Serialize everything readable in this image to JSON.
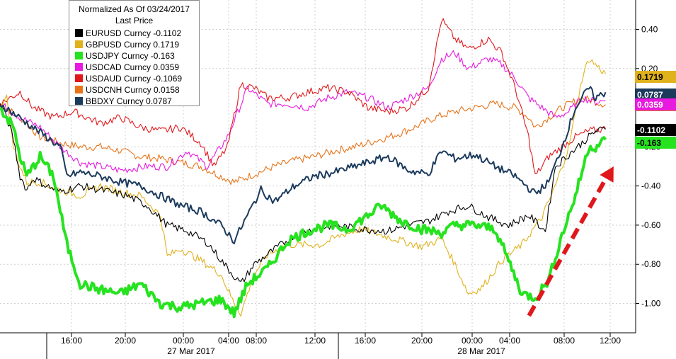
{
  "chart_data": {
    "type": "line",
    "legend": {
      "title_line1": "Normalized As Of 03/24/2017",
      "title_line2": "Last Price",
      "placement": "top-left"
    },
    "x_tick_labels": [
      "16:00",
      "20:00",
      "00:00",
      "04:00",
      "08:00",
      "12:00",
      "16:00",
      "20:00",
      "00:00",
      "04:00",
      "08:00",
      "12:00"
    ],
    "x_date_labels": [
      "27 Mar 2017",
      "28 Mar 2017"
    ],
    "y_tick_labels": [
      "0.40",
      "0.20",
      "-0.20",
      "-0.40",
      "-0.60",
      "-0.80",
      "-1.00"
    ],
    "ylim": [
      -1.15,
      0.55
    ],
    "grid": true,
    "series": [
      {
        "name": "EURUSD Curncy",
        "value_label": "-0.1102",
        "tag_label": "-0.1102",
        "color": "#000000",
        "tag_text_color": "#ffffff",
        "values": [
          [
            0,
            0.02
          ],
          [
            2,
            -0.05
          ],
          [
            4,
            -0.16
          ],
          [
            6,
            -0.35
          ],
          [
            8,
            -0.42
          ],
          [
            10,
            -0.36
          ],
          [
            14,
            -0.4
          ],
          [
            18,
            -0.43
          ],
          [
            24,
            -0.4
          ],
          [
            30,
            -0.42
          ],
          [
            38,
            -0.45
          ],
          [
            44,
            -0.5
          ],
          [
            50,
            -0.6
          ],
          [
            56,
            -0.63
          ],
          [
            62,
            -0.69
          ],
          [
            68,
            -0.82
          ],
          [
            72,
            -0.9
          ],
          [
            76,
            -0.8
          ],
          [
            80,
            -0.75
          ],
          [
            84,
            -0.7
          ],
          [
            88,
            -0.65
          ],
          [
            94,
            -0.62
          ],
          [
            100,
            -0.6
          ],
          [
            108,
            -0.62
          ],
          [
            116,
            -0.63
          ],
          [
            122,
            -0.6
          ],
          [
            128,
            -0.58
          ],
          [
            134,
            -0.53
          ],
          [
            140,
            -0.5
          ],
          [
            146,
            -0.56
          ],
          [
            152,
            -0.6
          ],
          [
            158,
            -0.55
          ],
          [
            163,
            -0.63
          ],
          [
            166,
            -0.3
          ],
          [
            170,
            -0.24
          ],
          [
            174,
            -0.18
          ],
          [
            178,
            -0.12
          ],
          [
            181,
            -0.1102
          ]
        ]
      },
      {
        "name": "GBPUSD Curncy",
        "value_label": "0.1719",
        "tag_label": "0.1719",
        "color": "#e0b21c",
        "tag_text_color": "#000000",
        "values": [
          [
            0,
            0.02
          ],
          [
            2,
            0.05
          ],
          [
            4,
            -0.2
          ],
          [
            6,
            -0.3
          ],
          [
            8,
            -0.38
          ],
          [
            12,
            -0.38
          ],
          [
            18,
            -0.42
          ],
          [
            24,
            -0.45
          ],
          [
            30,
            -0.4
          ],
          [
            36,
            -0.43
          ],
          [
            42,
            -0.45
          ],
          [
            48,
            -0.55
          ],
          [
            50,
            -0.76
          ],
          [
            54,
            -0.72
          ],
          [
            60,
            -0.78
          ],
          [
            66,
            -0.85
          ],
          [
            70,
            -1.0
          ],
          [
            72,
            -1.05
          ],
          [
            76,
            -0.85
          ],
          [
            80,
            -0.75
          ],
          [
            86,
            -0.7
          ],
          [
            90,
            -0.7
          ],
          [
            96,
            -0.7
          ],
          [
            102,
            -0.65
          ],
          [
            108,
            -0.62
          ],
          [
            114,
            -0.65
          ],
          [
            120,
            -0.68
          ],
          [
            126,
            -0.71
          ],
          [
            132,
            -0.67
          ],
          [
            136,
            -0.8
          ],
          [
            140,
            -0.95
          ],
          [
            144,
            -0.92
          ],
          [
            150,
            -0.78
          ],
          [
            156,
            -0.7
          ],
          [
            162,
            -0.56
          ],
          [
            166,
            -0.4
          ],
          [
            170,
            -0.2
          ],
          [
            174,
            0.15
          ],
          [
            176,
            0.25
          ],
          [
            178,
            0.22
          ],
          [
            181,
            0.1719
          ]
        ]
      },
      {
        "name": "USDJPY Curncy",
        "value_label": "-0.163",
        "tag_label": "-0.163",
        "color": "#26e31f",
        "tag_text_color": "#000000",
        "values": [
          [
            0,
            0.0
          ],
          [
            4,
            -0.1
          ],
          [
            6,
            -0.25
          ],
          [
            8,
            -0.35
          ],
          [
            12,
            -0.25
          ],
          [
            16,
            -0.35
          ],
          [
            20,
            -0.7
          ],
          [
            24,
            -0.9
          ],
          [
            30,
            -0.93
          ],
          [
            36,
            -0.95
          ],
          [
            42,
            -0.9
          ],
          [
            48,
            -1.0
          ],
          [
            54,
            -1.02
          ],
          [
            60,
            -1.0
          ],
          [
            66,
            -0.98
          ],
          [
            70,
            -1.05
          ],
          [
            74,
            -0.9
          ],
          [
            80,
            -0.82
          ],
          [
            86,
            -0.68
          ],
          [
            92,
            -0.63
          ],
          [
            98,
            -0.6
          ],
          [
            104,
            -0.62
          ],
          [
            110,
            -0.55
          ],
          [
            114,
            -0.5
          ],
          [
            120,
            -0.58
          ],
          [
            126,
            -0.62
          ],
          [
            132,
            -0.64
          ],
          [
            136,
            -0.6
          ],
          [
            142,
            -0.6
          ],
          [
            148,
            -0.62
          ],
          [
            152,
            -0.78
          ],
          [
            156,
            -0.95
          ],
          [
            160,
            -0.97
          ],
          [
            164,
            -0.88
          ],
          [
            168,
            -0.65
          ],
          [
            172,
            -0.45
          ],
          [
            176,
            -0.2
          ],
          [
            178,
            -0.2
          ],
          [
            181,
            -0.163
          ]
        ]
      },
      {
        "name": "USDCAD Curncy",
        "value_label": "0.0359",
        "tag_label": "0.0359",
        "color": "#e81adf",
        "tag_text_color": "#ffffff",
        "values": [
          [
            0,
            0.02
          ],
          [
            6,
            -0.05
          ],
          [
            12,
            -0.1
          ],
          [
            18,
            -0.2
          ],
          [
            24,
            -0.28
          ],
          [
            30,
            -0.3
          ],
          [
            36,
            -0.32
          ],
          [
            44,
            -0.3
          ],
          [
            50,
            -0.3
          ],
          [
            56,
            -0.22
          ],
          [
            62,
            -0.3
          ],
          [
            68,
            -0.15
          ],
          [
            74,
            0.1
          ],
          [
            80,
            0.02
          ],
          [
            86,
            0.02
          ],
          [
            92,
            0.0
          ],
          [
            98,
            0.05
          ],
          [
            104,
            0.08
          ],
          [
            110,
            0.05
          ],
          [
            116,
            0.0
          ],
          [
            122,
            0.05
          ],
          [
            128,
            0.1
          ],
          [
            132,
            0.25
          ],
          [
            136,
            0.28
          ],
          [
            140,
            0.2
          ],
          [
            146,
            0.25
          ],
          [
            150,
            0.22
          ],
          [
            154,
            0.15
          ],
          [
            158,
            0.05
          ],
          [
            162,
            0.0
          ],
          [
            166,
            -0.05
          ],
          [
            170,
            -0.02
          ],
          [
            174,
            0.05
          ],
          [
            178,
            0.03
          ],
          [
            181,
            0.0359
          ]
        ]
      },
      {
        "name": "USDAUD Curncy",
        "value_label": "-0.1069",
        "tag_label": "-0.1069",
        "color": "#e0181c",
        "tag_text_color": "#ffffff",
        "values": [
          [
            0,
            0.02
          ],
          [
            6,
            0.08
          ],
          [
            10,
            0.0
          ],
          [
            16,
            -0.05
          ],
          [
            22,
            -0.02
          ],
          [
            30,
            -0.08
          ],
          [
            36,
            -0.05
          ],
          [
            42,
            -0.1
          ],
          [
            48,
            -0.12
          ],
          [
            54,
            -0.1
          ],
          [
            60,
            -0.18
          ],
          [
            64,
            -0.3
          ],
          [
            68,
            -0.2
          ],
          [
            72,
            0.12
          ],
          [
            76,
            0.1
          ],
          [
            80,
            0.05
          ],
          [
            86,
            0.05
          ],
          [
            92,
            0.08
          ],
          [
            98,
            0.1
          ],
          [
            104,
            0.08
          ],
          [
            110,
            0.0
          ],
          [
            116,
            -0.02
          ],
          [
            122,
            0.0
          ],
          [
            128,
            0.1
          ],
          [
            132,
            0.45
          ],
          [
            136,
            0.35
          ],
          [
            140,
            0.3
          ],
          [
            146,
            0.35
          ],
          [
            150,
            0.28
          ],
          [
            154,
            0.1
          ],
          [
            158,
            -0.15
          ],
          [
            160,
            -0.35
          ],
          [
            164,
            -0.25
          ],
          [
            168,
            -0.2
          ],
          [
            172,
            -0.15
          ],
          [
            176,
            -0.12
          ],
          [
            181,
            -0.1069
          ]
        ]
      },
      {
        "name": "USDCNH Curncy",
        "value_label": "0.0158",
        "tag_label": "0.0158",
        "color": "#e8741a",
        "tag_text_color": "#000000",
        "values": [
          [
            0,
            0.02
          ],
          [
            6,
            -0.05
          ],
          [
            12,
            -0.15
          ],
          [
            18,
            -0.18
          ],
          [
            24,
            -0.2
          ],
          [
            30,
            -0.2
          ],
          [
            36,
            -0.22
          ],
          [
            42,
            -0.25
          ],
          [
            48,
            -0.26
          ],
          [
            54,
            -0.28
          ],
          [
            60,
            -0.3
          ],
          [
            66,
            -0.35
          ],
          [
            70,
            -0.38
          ],
          [
            76,
            -0.34
          ],
          [
            82,
            -0.3
          ],
          [
            88,
            -0.27
          ],
          [
            94,
            -0.25
          ],
          [
            100,
            -0.22
          ],
          [
            106,
            -0.2
          ],
          [
            112,
            -0.17
          ],
          [
            118,
            -0.14
          ],
          [
            124,
            -0.1
          ],
          [
            130,
            -0.05
          ],
          [
            136,
            -0.02
          ],
          [
            142,
            0.0
          ],
          [
            148,
            0.02
          ],
          [
            154,
            0.0
          ],
          [
            158,
            -0.05
          ],
          [
            160,
            -0.1
          ],
          [
            164,
            -0.05
          ],
          [
            168,
            0.0
          ],
          [
            174,
            0.05
          ],
          [
            181,
            0.0158
          ]
        ]
      },
      {
        "name": "BBDXY Curncy",
        "value_label": "0.0787",
        "tag_label": "0.0787",
        "color": "#1b3a5c",
        "tag_text_color": "#ffffff",
        "values": [
          [
            0,
            0.02
          ],
          [
            18,
            -0.2
          ],
          [
            20,
            -0.35
          ],
          [
            24,
            -0.33
          ],
          [
            30,
            -0.35
          ],
          [
            36,
            -0.38
          ],
          [
            42,
            -0.4
          ],
          [
            48,
            -0.45
          ],
          [
            54,
            -0.5
          ],
          [
            60,
            -0.53
          ],
          [
            66,
            -0.6
          ],
          [
            70,
            -0.68
          ],
          [
            74,
            -0.55
          ],
          [
            78,
            -0.42
          ],
          [
            82,
            -0.48
          ],
          [
            88,
            -0.4
          ],
          [
            94,
            -0.35
          ],
          [
            100,
            -0.33
          ],
          [
            106,
            -0.3
          ],
          [
            110,
            -0.28
          ],
          [
            116,
            -0.25
          ],
          [
            122,
            -0.32
          ],
          [
            128,
            -0.34
          ],
          [
            132,
            -0.22
          ],
          [
            136,
            -0.26
          ],
          [
            142,
            -0.24
          ],
          [
            148,
            -0.3
          ],
          [
            154,
            -0.35
          ],
          [
            160,
            -0.44
          ],
          [
            164,
            -0.38
          ],
          [
            168,
            -0.2
          ],
          [
            172,
            0.0
          ],
          [
            176,
            0.1
          ],
          [
            178,
            0.05
          ],
          [
            181,
            0.0787
          ]
        ]
      }
    ],
    "annotation": {
      "type": "dashed-arrow",
      "color": "#e0181c",
      "from": [
        156,
        -0.9
      ],
      "to": [
        176,
        -0.3
      ]
    }
  },
  "tags": {
    "hidden_partial": "0.0158"
  }
}
